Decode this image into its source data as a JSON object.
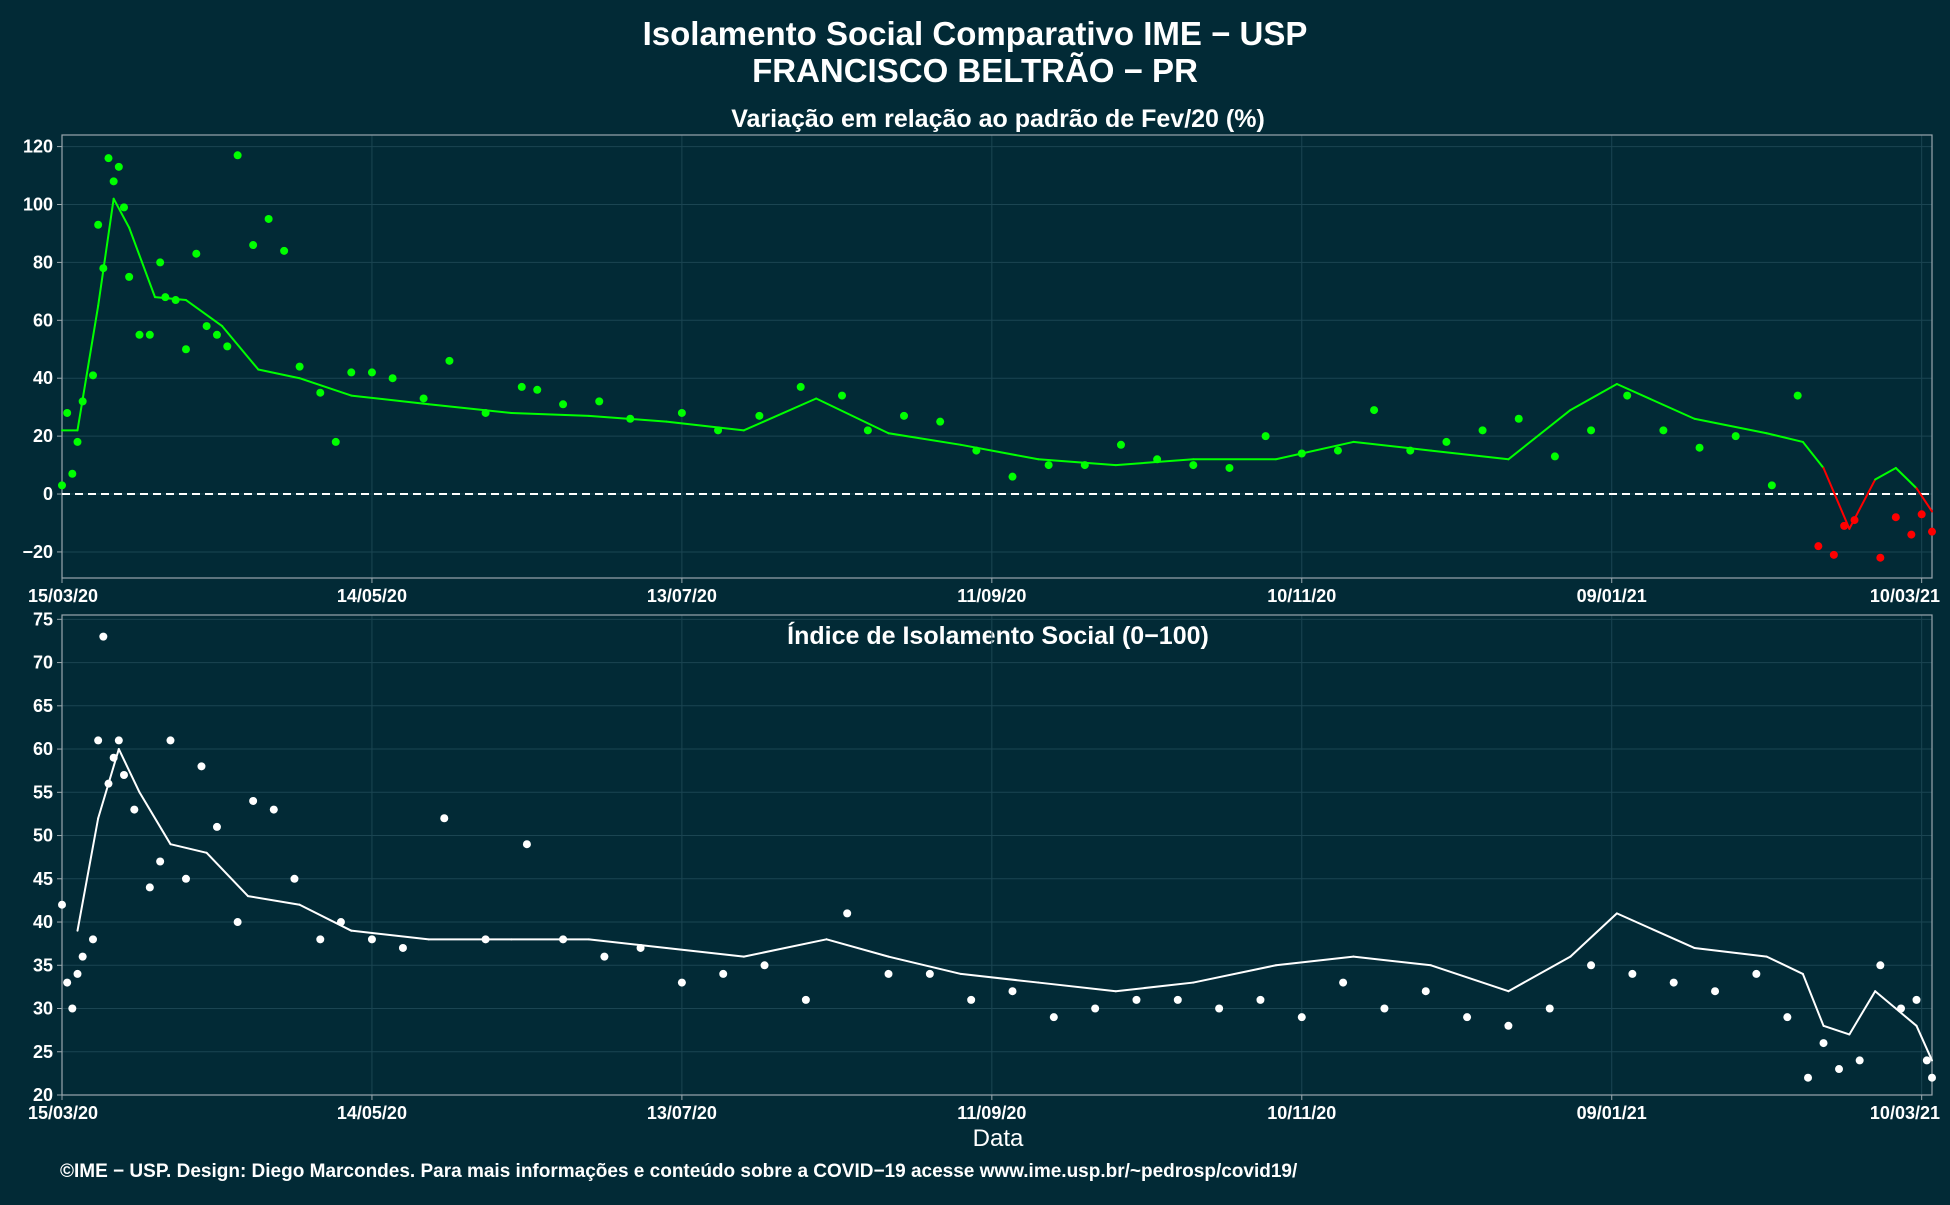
{
  "header": {
    "title_line1": "Isolamento Social Comparativo IME − USP",
    "title_line2": "FRANCISCO BELTRÃO − PR"
  },
  "x_axis_label": "Data",
  "footer": "©IME − USP. Design: Diego Marcondes. Para mais informações e conteúdo sobre a COVID−19 acesse www.ime.usp.br/~pedrosp/covid19/",
  "colors": {
    "background": "#022a36",
    "positive": "#00ff00",
    "negative": "#ff0000",
    "index_points": "#ffffff",
    "grid": "#1b4552",
    "axis": "#9aa7ad"
  },
  "chart_data": [
    {
      "type": "scatter",
      "title": "Variação em relação ao padrão de Fev/20 (%)",
      "xlabel": "",
      "ylabel": "",
      "x_range": [
        "2020-03-15",
        "2021-03-12"
      ],
      "ylim": [
        -29,
        124
      ],
      "y_ticks": [
        -20,
        0,
        20,
        40,
        60,
        80,
        100,
        120
      ],
      "x_ticks": [
        "15/03/20",
        "14/05/20",
        "13/07/20",
        "11/09/20",
        "10/11/20",
        "09/01/21",
        "10/03/21"
      ],
      "reference_line": 0,
      "grid": true,
      "colors": "points and line green when value >= 0, red when value < 0",
      "series": [
        {
          "type": "points",
          "x": [
            "2020-03-15",
            "2020-03-16",
            "2020-03-17",
            "2020-03-18",
            "2020-03-19",
            "2020-03-21",
            "2020-03-22",
            "2020-03-23",
            "2020-03-24",
            "2020-03-25",
            "2020-03-26",
            "2020-03-27",
            "2020-03-28",
            "2020-03-30",
            "2020-04-01",
            "2020-04-03",
            "2020-04-04",
            "2020-04-06",
            "2020-04-08",
            "2020-04-10",
            "2020-04-12",
            "2020-04-14",
            "2020-04-16",
            "2020-04-18",
            "2020-04-21",
            "2020-04-24",
            "2020-04-27",
            "2020-04-30",
            "2020-05-04",
            "2020-05-07",
            "2020-05-10",
            "2020-05-14",
            "2020-05-18",
            "2020-05-24",
            "2020-05-29",
            "2020-06-05",
            "2020-06-12",
            "2020-06-15",
            "2020-06-20",
            "2020-06-27",
            "2020-07-03",
            "2020-07-13",
            "2020-07-20",
            "2020-07-28",
            "2020-08-05",
            "2020-08-13",
            "2020-08-18",
            "2020-08-25",
            "2020-09-01",
            "2020-09-08",
            "2020-09-15",
            "2020-09-22",
            "2020-09-29",
            "2020-10-06",
            "2020-10-13",
            "2020-10-20",
            "2020-10-27",
            "2020-11-03",
            "2020-11-10",
            "2020-11-17",
            "2020-11-24",
            "2020-12-01",
            "2020-12-08",
            "2020-12-15",
            "2020-12-22",
            "2020-12-29",
            "2021-01-05",
            "2021-01-12",
            "2021-01-19",
            "2021-01-26",
            "2021-02-02",
            "2021-02-09",
            "2021-02-14",
            "2021-02-18",
            "2021-02-21",
            "2021-02-23",
            "2021-02-25",
            "2021-03-02",
            "2021-03-05",
            "2021-03-08",
            "2021-03-10",
            "2021-03-12"
          ],
          "y": [
            3,
            28,
            7,
            18,
            32,
            41,
            93,
            78,
            116,
            108,
            113,
            99,
            75,
            55,
            55,
            80,
            68,
            67,
            50,
            83,
            58,
            55,
            51,
            117,
            86,
            95,
            84,
            44,
            35,
            18,
            42,
            42,
            40,
            33,
            46,
            28,
            37,
            36,
            31,
            32,
            26,
            28,
            22,
            27,
            37,
            34,
            22,
            27,
            25,
            15,
            6,
            10,
            10,
            17,
            12,
            10,
            9,
            20,
            14,
            15,
            29,
            15,
            18,
            22,
            26,
            13,
            22,
            34,
            22,
            16,
            20,
            3,
            34,
            -18,
            -21,
            -11,
            -9,
            -22,
            -8,
            -14,
            -7,
            -13
          ]
        },
        {
          "type": "line",
          "label": "",
          "x": [
            "2020-03-15",
            "2020-03-18",
            "2020-03-22",
            "2020-03-25",
            "2020-03-28",
            "2020-04-02",
            "2020-04-08",
            "2020-04-15",
            "2020-04-22",
            "2020-04-30",
            "2020-05-10",
            "2020-05-25",
            "2020-06-10",
            "2020-06-25",
            "2020-07-10",
            "2020-07-25",
            "2020-08-08",
            "2020-08-22",
            "2020-09-05",
            "2020-09-20",
            "2020-10-05",
            "2020-10-20",
            "2020-11-05",
            "2020-11-20",
            "2020-12-05",
            "2020-12-20",
            "2021-01-01",
            "2021-01-10",
            "2021-01-25",
            "2021-02-08",
            "2021-02-15",
            "2021-02-19",
            "2021-02-24",
            "2021-03-01",
            "2021-03-05",
            "2021-03-09",
            "2021-03-12"
          ],
          "y": [
            22,
            22,
            65,
            102,
            92,
            68,
            67,
            58,
            43,
            40,
            34,
            31,
            28,
            27,
            25,
            22,
            33,
            21,
            17,
            12,
            10,
            12,
            12,
            18,
            15,
            12,
            29,
            38,
            26,
            21,
            18,
            9,
            -12,
            5,
            9,
            2,
            -6
          ]
        }
      ]
    },
    {
      "type": "scatter",
      "title": "Índice de Isolamento Social (0−100)",
      "xlabel": "Data",
      "ylabel": "",
      "x_range": [
        "2020-03-15",
        "2021-03-12"
      ],
      "ylim": [
        20,
        75.5
      ],
      "y_ticks": [
        20,
        25,
        30,
        35,
        40,
        45,
        50,
        55,
        60,
        65,
        70,
        75
      ],
      "x_ticks": [
        "15/03/20",
        "14/05/20",
        "13/07/20",
        "11/09/20",
        "10/11/20",
        "09/01/21",
        "10/03/21"
      ],
      "grid": true,
      "series": [
        {
          "type": "points",
          "x": [
            "2020-03-15",
            "2020-03-16",
            "2020-03-17",
            "2020-03-18",
            "2020-03-19",
            "2020-03-21",
            "2020-03-22",
            "2020-03-23",
            "2020-03-24",
            "2020-03-25",
            "2020-03-26",
            "2020-03-27",
            "2020-03-29",
            "2020-04-01",
            "2020-04-03",
            "2020-04-05",
            "2020-04-08",
            "2020-04-11",
            "2020-04-14",
            "2020-04-18",
            "2020-04-21",
            "2020-04-25",
            "2020-04-29",
            "2020-05-04",
            "2020-05-08",
            "2020-05-14",
            "2020-05-20",
            "2020-05-28",
            "2020-06-05",
            "2020-06-13",
            "2020-06-20",
            "2020-06-28",
            "2020-07-05",
            "2020-07-13",
            "2020-07-21",
            "2020-07-29",
            "2020-08-06",
            "2020-08-14",
            "2020-08-22",
            "2020-08-30",
            "2020-09-07",
            "2020-09-15",
            "2020-09-23",
            "2020-10-01",
            "2020-10-09",
            "2020-10-17",
            "2020-10-25",
            "2020-11-02",
            "2020-11-10",
            "2020-11-18",
            "2020-11-26",
            "2020-12-04",
            "2020-12-12",
            "2020-12-20",
            "2020-12-28",
            "2021-01-05",
            "2021-01-13",
            "2021-01-21",
            "2021-01-29",
            "2021-02-06",
            "2021-02-12",
            "2021-02-16",
            "2021-02-19",
            "2021-02-22",
            "2021-02-26",
            "2021-03-02",
            "2021-03-06",
            "2021-03-09",
            "2021-03-11",
            "2021-03-12"
          ],
          "y": [
            42,
            33,
            30,
            34,
            36,
            38,
            61,
            73,
            56,
            59,
            61,
            57,
            53,
            44,
            47,
            61,
            45,
            58,
            51,
            40,
            54,
            53,
            45,
            38,
            40,
            38,
            37,
            52,
            38,
            49,
            38,
            36,
            37,
            33,
            34,
            35,
            31,
            41,
            34,
            34,
            31,
            32,
            29,
            30,
            31,
            31,
            30,
            31,
            29,
            33,
            30,
            32,
            29,
            28,
            30,
            35,
            34,
            33,
            32,
            34,
            29,
            22,
            26,
            23,
            24,
            35,
            30,
            31,
            24,
            22
          ]
        },
        {
          "type": "line",
          "label": "",
          "x": [
            "2020-03-18",
            "2020-03-22",
            "2020-03-26",
            "2020-03-30",
            "2020-04-05",
            "2020-04-12",
            "2020-04-20",
            "2020-04-30",
            "2020-05-10",
            "2020-05-25",
            "2020-06-10",
            "2020-06-25",
            "2020-07-10",
            "2020-07-25",
            "2020-08-10",
            "2020-08-22",
            "2020-09-05",
            "2020-09-20",
            "2020-10-05",
            "2020-10-20",
            "2020-11-05",
            "2020-11-20",
            "2020-12-05",
            "2020-12-20",
            "2021-01-01",
            "2021-01-10",
            "2021-01-25",
            "2021-02-08",
            "2021-02-15",
            "2021-02-19",
            "2021-02-24",
            "2021-03-01",
            "2021-03-05",
            "2021-03-09",
            "2021-03-12"
          ],
          "y": [
            39,
            52,
            60,
            55,
            49,
            48,
            43,
            42,
            39,
            38,
            38,
            38,
            37,
            36,
            38,
            36,
            34,
            33,
            32,
            33,
            35,
            36,
            35,
            32,
            36,
            41,
            37,
            36,
            34,
            28,
            27,
            32,
            30,
            28,
            24
          ]
        }
      ]
    }
  ]
}
